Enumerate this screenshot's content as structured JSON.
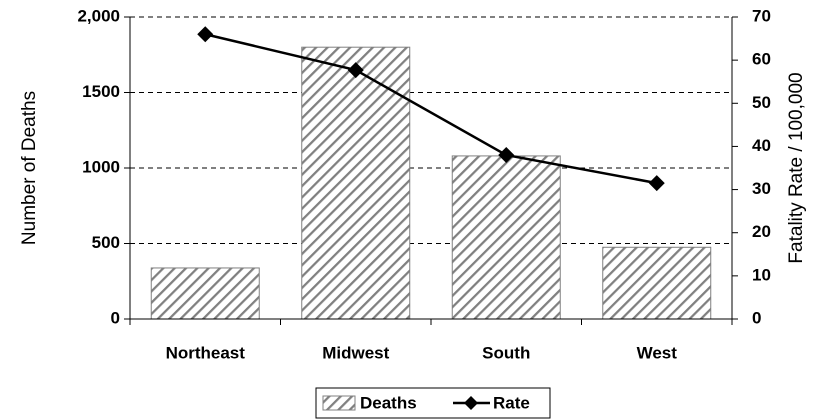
{
  "chart_data": {
    "type": "bar-line",
    "categories": [
      "Northeast",
      "Midwest",
      "South",
      "West"
    ],
    "y_label": "Number of Deaths",
    "y2_label": "Fatality Rate / 100,000",
    "series": [
      {
        "name": "Deaths",
        "type": "bar",
        "color": "#808080",
        "values": [
          338,
          1800,
          1080,
          475
        ]
      },
      {
        "name": "Rate",
        "type": "line",
        "axis": "y2",
        "color": "#000000",
        "values": [
          66,
          57.7,
          38,
          31.5
        ]
      }
    ],
    "ylim": [
      0,
      2000
    ],
    "yticks": [
      0,
      500,
      1000,
      1500,
      {
        "value": 2000,
        "label": "2,000"
      }
    ],
    "y2lim": [
      0,
      70
    ],
    "y2ticks": [
      0,
      10,
      20,
      30,
      40,
      50,
      60,
      70
    ],
    "grid": true,
    "legend": "bottom"
  }
}
